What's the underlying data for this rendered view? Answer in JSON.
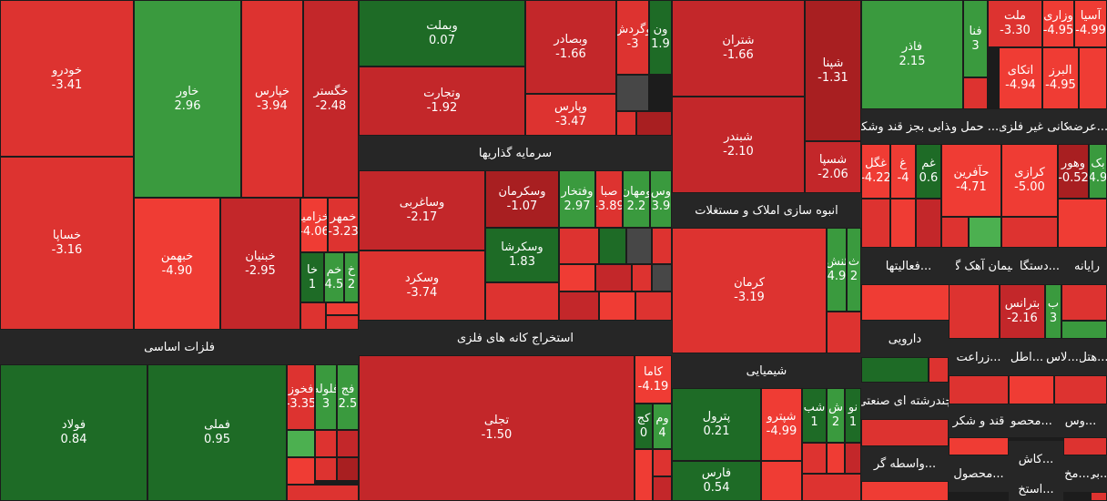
{
  "colors": {
    "pos_strong": "#1e6b26",
    "pos": "#3a9a3e",
    "pos_light": "#4cb050",
    "neg_light": "#ef3c34",
    "neg": "#dd3330",
    "neg_dark": "#c3272a",
    "neg_darker": "#a81f21",
    "neutral": "#474747",
    "header": "#262626"
  },
  "headers": [
    {
      "label": "فلزات اساسی"
    },
    {
      "label": "سرمایه گذاریها"
    },
    {
      "label": "استخراج کانه های فلزی"
    },
    {
      "label": "انبوه سازی املاک و مستغلات"
    },
    {
      "label": "شیمیایی"
    },
    {
      "label": "عرضه..."
    },
    {
      "label": "کانی غیر فلزی"
    },
    {
      "label": "حمل و ..."
    },
    {
      "label": "غذایی بجز قند وشکر"
    },
    {
      "label": "رایانه"
    },
    {
      "label": "دستگا..."
    },
    {
      "label": "سیمان آهک گچ"
    },
    {
      "label": "فعالیتها..."
    },
    {
      "label": "دارویی"
    },
    {
      "label": "هتل..."
    },
    {
      "label": "لاس..."
    },
    {
      "label": "اطل..."
    },
    {
      "label": "زراعت..."
    },
    {
      "label": "چندرشته ای صنعتی"
    },
    {
      "label": "قند و شکر"
    },
    {
      "label": "محصو..."
    },
    {
      "label": "وس..."
    },
    {
      "label": "واسطه گر..."
    },
    {
      "label": "محصول..."
    },
    {
      "label": "کاش..."
    },
    {
      "label": "مخ..."
    },
    {
      "label": "بی..."
    },
    {
      "label": "استخ..."
    }
  ],
  "chart_data": {
    "type": "treemap",
    "unit": "%",
    "tiles": [
      {
        "name": "خودرو",
        "value": -3.41
      },
      {
        "name": "خساپا",
        "value": -3.16
      },
      {
        "name": "خاور",
        "value": 2.96
      },
      {
        "name": "خپارس",
        "value": -3.94
      },
      {
        "name": "خگستر",
        "value": -2.48
      },
      {
        "name": "خبهمن",
        "value": -4.9
      },
      {
        "name": "خبنیان",
        "value": -2.95
      },
      {
        "name": "خزامیا",
        "value": -4.06
      },
      {
        "name": "خمهر",
        "value": -3.23
      },
      {
        "name": "خا",
        "value": 1.0
      },
      {
        "name": "خم",
        "value": 4.5
      },
      {
        "name": "خ",
        "value": 2.0
      },
      {
        "name": "فولاد",
        "value": 0.84
      },
      {
        "name": "فملی",
        "value": 0.95
      },
      {
        "name": "فخوز",
        "value": -3.35
      },
      {
        "name": "فلوله",
        "value": 3.0
      },
      {
        "name": "فج",
        "value": 2.5
      },
      {
        "name": "وبملت",
        "value": 0.07
      },
      {
        "name": "وتجارت",
        "value": -1.92
      },
      {
        "name": "وبصادر",
        "value": -1.66
      },
      {
        "name": "وگردش",
        "value": -3.0
      },
      {
        "name": "ون",
        "value": 1.9
      },
      {
        "name": "وپارس",
        "value": -3.47
      },
      {
        "name": "وساغربی",
        "value": -2.17
      },
      {
        "name": "وسکرمان",
        "value": -1.07
      },
      {
        "name": "وفتخار",
        "value": 2.97
      },
      {
        "name": "صبا",
        "value": -3.89
      },
      {
        "name": "ومهان",
        "value": 2.2
      },
      {
        "name": "وس",
        "value": 3.9
      },
      {
        "name": "وسکرشا",
        "value": 1.83
      },
      {
        "name": "وسکرد",
        "value": -3.74
      },
      {
        "name": "تجلی",
        "value": -1.5
      },
      {
        "name": "کاما",
        "value": -4.19
      },
      {
        "name": "کج",
        "value": 0.0
      },
      {
        "name": "وم",
        "value": 4.0
      },
      {
        "name": "شتران",
        "value": -1.66
      },
      {
        "name": "شپنا",
        "value": -1.31
      },
      {
        "name": "شبندر",
        "value": -2.1
      },
      {
        "name": "شسپا",
        "value": -2.06
      },
      {
        "name": "کرمان",
        "value": -3.19
      },
      {
        "name": "ثنش",
        "value": 4.9
      },
      {
        "name": "ث",
        "value": 2.0
      },
      {
        "name": "پترول",
        "value": 0.21
      },
      {
        "name": "شپترو",
        "value": -4.99
      },
      {
        "name": "شب",
        "value": 1.0
      },
      {
        "name": "ش",
        "value": 2.0
      },
      {
        "name": "نو",
        "value": 1.0
      },
      {
        "name": "فارس",
        "value": 0.54
      },
      {
        "name": "فاذر",
        "value": 2.15
      },
      {
        "name": "فنا",
        "value": 3.0
      },
      {
        "name": "ملت",
        "value": -3.3
      },
      {
        "name": "وزاری",
        "value": -4.95
      },
      {
        "name": "آسیا",
        "value": -4.99
      },
      {
        "name": "اتکای",
        "value": -4.94
      },
      {
        "name": "البرز",
        "value": -4.95
      },
      {
        "name": "غگل",
        "value": -4.22
      },
      {
        "name": "غ",
        "value": -4.0
      },
      {
        "name": "غم",
        "value": 0.6
      },
      {
        "name": "حآفرین",
        "value": -4.71
      },
      {
        "name": "کرازی",
        "value": -5.0
      },
      {
        "name": "وهور",
        "value": -0.52
      },
      {
        "name": "بک",
        "value": 4.9
      },
      {
        "name": "بترانس",
        "value": -2.16
      },
      {
        "name": "ب",
        "value": 3.0
      }
    ]
  }
}
